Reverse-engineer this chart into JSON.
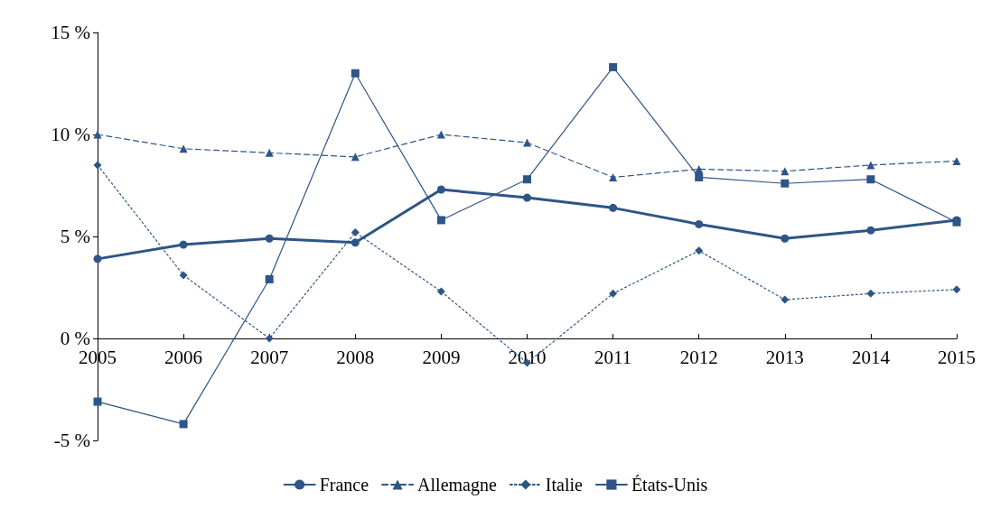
{
  "chart_data": {
    "type": "line",
    "categories": [
      "2005",
      "2006",
      "2007",
      "2008",
      "2009",
      "2010",
      "2011",
      "2012",
      "2013",
      "2014",
      "2015"
    ],
    "series": [
      {
        "name": "France",
        "color": "#2e5587",
        "marker": "circle",
        "line_style": "solid",
        "values": [
          3.9,
          4.6,
          4.9,
          4.7,
          7.3,
          6.9,
          6.4,
          5.6,
          4.9,
          5.3,
          5.8
        ]
      },
      {
        "name": "Allemagne",
        "color": "#2e5587",
        "marker": "triangle",
        "line_style": "dashed",
        "values": [
          10.0,
          9.3,
          9.1,
          8.9,
          10.0,
          9.6,
          7.9,
          8.3,
          8.2,
          8.5,
          8.7
        ]
      },
      {
        "name": "Italie",
        "color": "#2e5587",
        "marker": "diamond",
        "line_style": "dotted",
        "values": [
          8.5,
          3.1,
          0.0,
          5.2,
          2.3,
          -1.2,
          2.2,
          4.3,
          1.9,
          2.2,
          2.4
        ]
      },
      {
        "name": "États-Unis",
        "color": "#2e5587",
        "marker": "square",
        "line_style": "solid",
        "values": [
          -3.1,
          -4.2,
          2.9,
          13.0,
          5.8,
          7.8,
          13.3,
          7.9,
          7.6,
          7.8,
          5.7
        ]
      }
    ],
    "ylim": [
      -5,
      15
    ],
    "yticks": [
      {
        "value": -5,
        "label": "-5 %"
      },
      {
        "value": 0,
        "label": "0 %"
      },
      {
        "value": 5,
        "label": "5 %"
      },
      {
        "value": 10,
        "label": "10 %"
      },
      {
        "value": 15,
        "label": "15 %"
      }
    ],
    "grid": false,
    "legend": "bottom"
  }
}
